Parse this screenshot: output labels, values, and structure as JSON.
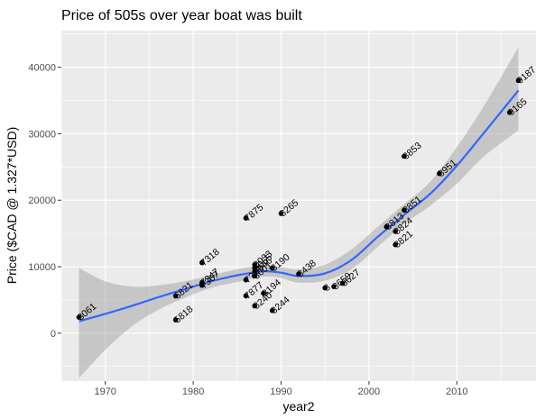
{
  "chart_data": {
    "type": "scatter",
    "title": "Price of 505s over year boat was built",
    "xlabel": "year2",
    "ylabel": "Price ($CAD @ 1.327*USD)",
    "xlim": [
      1965,
      2019
    ],
    "ylim": [
      -7200,
      45500
    ],
    "xticks": [
      1970,
      1980,
      1990,
      2000,
      2010
    ],
    "yticks": [
      0,
      10000,
      20000,
      30000,
      40000
    ],
    "grid": true,
    "colors": {
      "panel": "#ebebeb",
      "grid": "#ffffff",
      "points": "#000000",
      "smooth": "#3366ff",
      "band": "#999999"
    },
    "points": [
      {
        "x": 1967,
        "y": 2400,
        "label": "3061"
      },
      {
        "x": 1978,
        "y": 5600,
        "label": "6821"
      },
      {
        "x": 1978,
        "y": 2000,
        "label": "5818"
      },
      {
        "x": 1981,
        "y": 10600,
        "label": "7318"
      },
      {
        "x": 1981,
        "y": 7600,
        "label": "7347"
      },
      {
        "x": 1981,
        "y": 7200,
        "label": "7367"
      },
      {
        "x": 1986,
        "y": 17300,
        "label": "7875"
      },
      {
        "x": 1986,
        "y": 8000,
        "label": "7???"
      },
      {
        "x": 1986,
        "y": 5600,
        "label": "7877"
      },
      {
        "x": 1987,
        "y": 10300,
        "label": "8033"
      },
      {
        "x": 1987,
        "y": 9800,
        "label": "8055"
      },
      {
        "x": 1987,
        "y": 9300,
        "label": "8046"
      },
      {
        "x": 1987,
        "y": 8600,
        "label": "8001"
      },
      {
        "x": 1987,
        "y": 4100,
        "label": "8240"
      },
      {
        "x": 1988,
        "y": 6000,
        "label": "8194"
      },
      {
        "x": 1989,
        "y": 9800,
        "label": "8190"
      },
      {
        "x": 1989,
        "y": 3400,
        "label": "8244"
      },
      {
        "x": 1990,
        "y": 18000,
        "label": "8265"
      },
      {
        "x": 1992,
        "y": 8900,
        "label": "8438"
      },
      {
        "x": 1995,
        "y": 6800,
        "label": "8"
      },
      {
        "x": 1996,
        "y": 7000,
        "label": "8659"
      },
      {
        "x": 1997,
        "y": 7500,
        "label": "8627"
      },
      {
        "x": 2002,
        "y": 16000,
        "label": "8813"
      },
      {
        "x": 2003,
        "y": 15300,
        "label": "8824"
      },
      {
        "x": 2003,
        "y": 13300,
        "label": "8821"
      },
      {
        "x": 2004,
        "y": 26600,
        "label": "8853"
      },
      {
        "x": 2004,
        "y": 18500,
        "label": "8851"
      },
      {
        "x": 2008,
        "y": 24000,
        "label": "8951"
      },
      {
        "x": 2016,
        "y": 33200,
        "label": "9165"
      },
      {
        "x": 2017,
        "y": 38000,
        "label": "9187"
      }
    ],
    "smooth": {
      "x": [
        1967,
        1970,
        1973,
        1976,
        1979,
        1982,
        1985,
        1988,
        1990,
        1992,
        1995,
        1998,
        2001,
        2004,
        2007,
        2010,
        2013,
        2017
      ],
      "y": [
        1800,
        2900,
        4100,
        5400,
        6600,
        7800,
        8700,
        9300,
        9100,
        8600,
        9000,
        11000,
        14500,
        17800,
        21000,
        25200,
        30000,
        36500
      ],
      "lower": [
        -6800,
        -2500,
        1000,
        3500,
        5300,
        6800,
        7700,
        8500,
        8300,
        7600,
        7900,
        9600,
        13000,
        16400,
        19200,
        22500,
        26500,
        30500
      ],
      "upper": [
        9800,
        7800,
        7000,
        7200,
        7800,
        8700,
        9600,
        10200,
        9900,
        9600,
        10300,
        12600,
        16000,
        19400,
        22800,
        28000,
        34000,
        43000
      ]
    }
  }
}
